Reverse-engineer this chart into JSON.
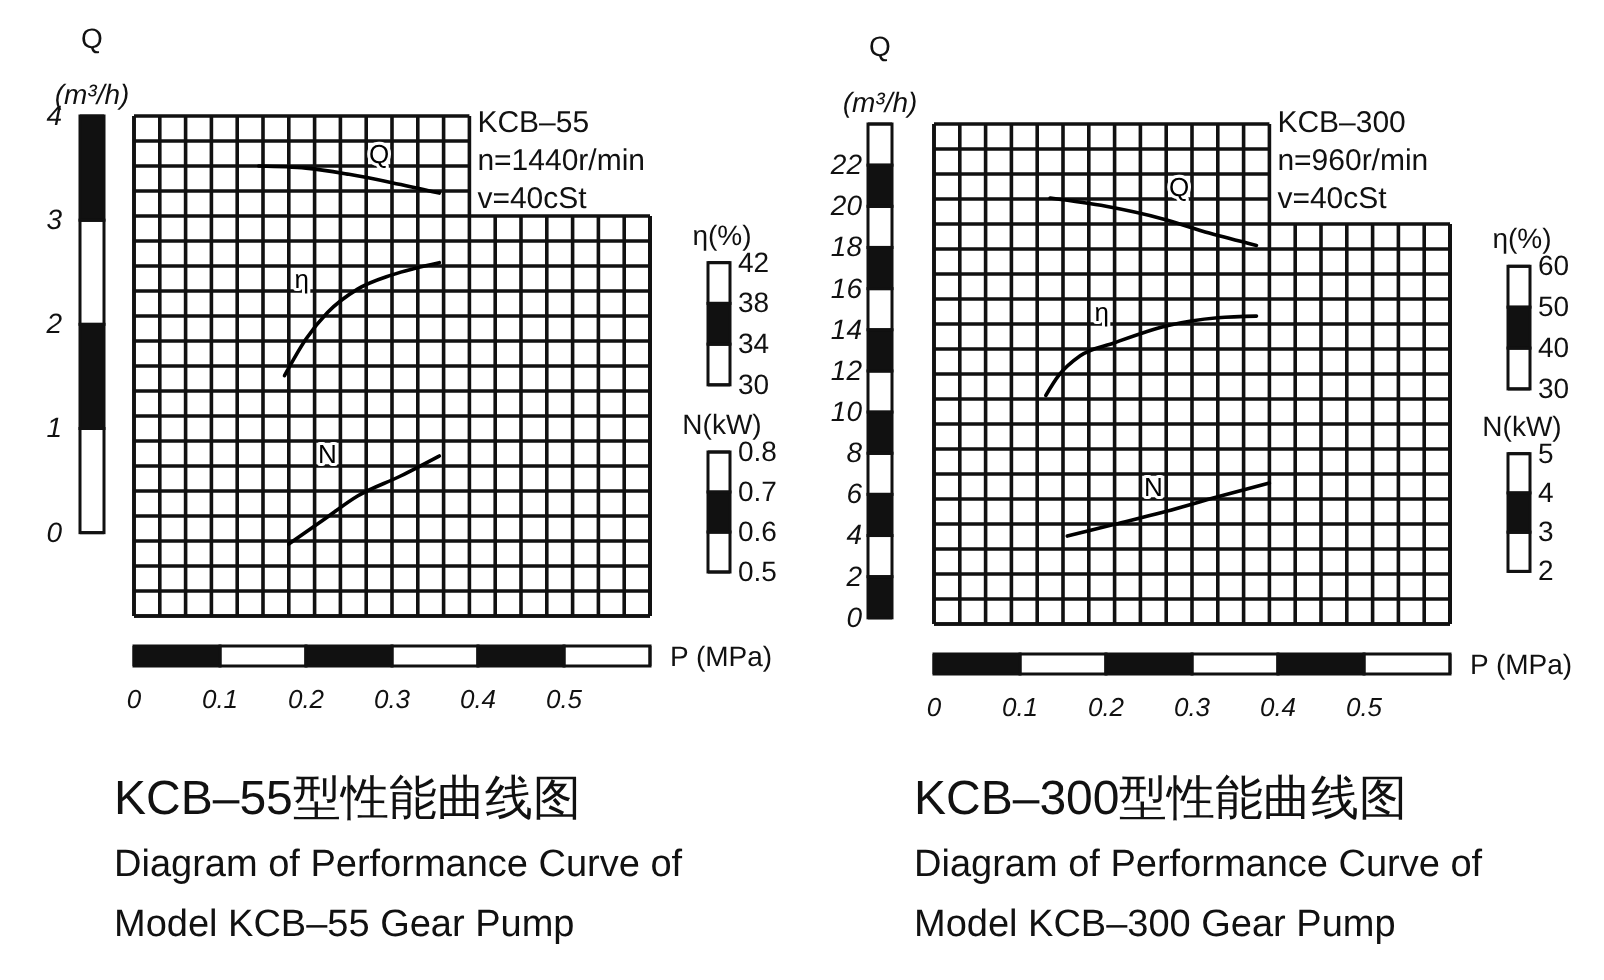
{
  "chart_data": [
    {
      "type": "line",
      "title": "KCB–55型性能曲线图",
      "subtitle": "Diagram of Performance Curve of Model KCB–55 Gear Pump",
      "xlabel": "P (MPa)",
      "ylabel": "Q (m³/h)",
      "y2label": "η(%)",
      "y3label": "N(kW)",
      "annotations": [
        "KCB–55",
        "n=1440r/min",
        "v=40cSt"
      ],
      "xlim": [
        0,
        0.6
      ],
      "xticks": [
        0,
        0.1,
        0.2,
        0.3,
        0.4,
        0.5,
        {
          "value": 0.6,
          "label": null
        }
      ],
      "ylim": [
        -0.8,
        4
      ],
      "yticks": [
        0,
        1,
        2,
        3,
        4
      ],
      "y2lim": [
        7.3,
        56.4
      ],
      "y2ticks": [
        30,
        34,
        38,
        42
      ],
      "y3lim": [
        0.39,
        1.64
      ],
      "y3ticks": [
        0.5,
        0.6,
        0.7,
        0.8
      ],
      "grid": true,
      "line_style": "solid",
      "series": [
        {
          "name": "Q",
          "color": "#000000",
          "x": [
            0.145,
            0.2,
            0.25,
            0.3,
            0.355
          ],
          "values": [
            3.52,
            3.5,
            3.44,
            3.36,
            3.26
          ]
        },
        {
          "name": "η",
          "color": "#000000",
          "axis": "y2",
          "x": [
            0.175,
            0.2,
            0.225,
            0.26,
            0.3,
            0.355
          ],
          "values": [
            30.9,
            34.5,
            37.1,
            39.4,
            40.8,
            42
          ]
        },
        {
          "name": "N",
          "color": "#000000",
          "axis": "y3",
          "x": [
            0.18,
            0.22,
            0.26,
            0.31,
            0.355
          ],
          "values": [
            0.57,
            0.63,
            0.69,
            0.74,
            0.79
          ]
        }
      ]
    },
    {
      "type": "line",
      "title": "KCB–300型性能曲线图",
      "subtitle": "Diagram of Performance Curve of Model KCB–300 Gear Pump",
      "xlabel": "P (MPa)",
      "ylabel": "Q (m³/h)",
      "y2label": "η(%)",
      "y3label": "N(kW)",
      "annotations": [
        "KCB–300",
        "n=960r/min",
        "v=40cSt"
      ],
      "xlim": [
        0,
        0.6
      ],
      "xticks": [
        0,
        0.1,
        0.2,
        0.3,
        0.4,
        0.5,
        {
          "value": 0.6,
          "label": null
        }
      ],
      "ylim": [
        -0.3,
        24
      ],
      "yticks": [
        0,
        2,
        4,
        6,
        8,
        10,
        12,
        14,
        16,
        18,
        20,
        22,
        {
          "value": 24,
          "label": null
        }
      ],
      "y2lim": [
        -27.5,
        94.8
      ],
      "y2ticks": [
        30,
        40,
        50,
        60
      ],
      "y3lim": [
        0.66,
        13.4
      ],
      "y3ticks": [
        2,
        3,
        4,
        5
      ],
      "grid": true,
      "line_style": "solid",
      "series": [
        {
          "name": "Q",
          "color": "#000000",
          "x": [
            0.135,
            0.2,
            0.265,
            0.32,
            0.375
          ],
          "values": [
            20.4,
            20.0,
            19.4,
            18.7,
            18.1
          ]
        },
        {
          "name": "η",
          "color": "#000000",
          "axis": "y2",
          "x": [
            0.13,
            0.145,
            0.17,
            0.21,
            0.27,
            0.33,
            0.375
          ],
          "values": [
            28.4,
            33.3,
            38.1,
            41.3,
            45.4,
            47.4,
            47.8
          ]
        },
        {
          "name": "N",
          "color": "#000000",
          "axis": "y3",
          "x": [
            0.155,
            0.21,
            0.265,
            0.33,
            0.39
          ],
          "values": [
            2.9,
            3.2,
            3.5,
            3.9,
            4.25
          ]
        }
      ]
    }
  ]
}
